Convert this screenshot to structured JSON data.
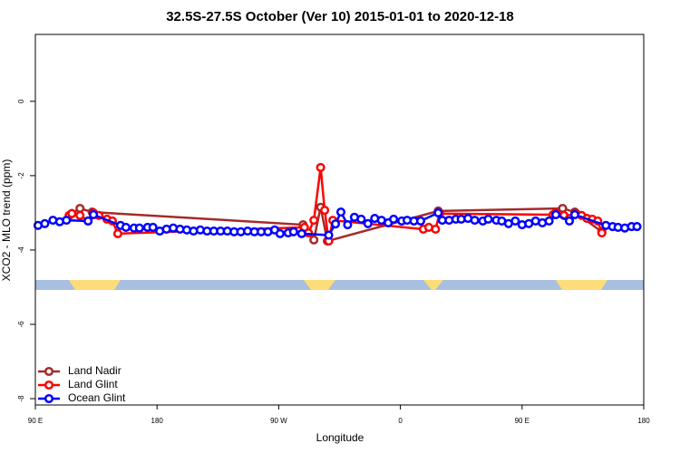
{
  "chart_data": {
    "type": "line",
    "title": "32.5S-27.5S October (Ver 10)   2015-01-01 to 2020-12-18",
    "x_label": "Longitude",
    "y_label": "XCO2 - MLO trend (ppm)",
    "xlim": [
      90,
      540
    ],
    "ylim": [
      -8.17,
      1.8
    ],
    "xticks": [
      {
        "value": 90,
        "label": "90 E"
      },
      180,
      {
        "value": 270,
        "label": "90 W"
      },
      {
        "value": 360,
        "label": "0"
      },
      {
        "value": 450,
        "label": "90 E"
      },
      {
        "value": 540,
        "label": "180"
      }
    ],
    "yticks": [
      0,
      -2,
      -4,
      -6,
      -8
    ],
    "legend": "bottom-left",
    "series": [
      {
        "name": "Land Nadir",
        "color": "#a52a2a",
        "x": [
          117,
          123,
          132,
          288,
          296,
          301,
          306,
          388,
          480,
          489,
          509
        ],
        "values": [
          -3.02,
          -2.88,
          -2.98,
          -3.32,
          -3.73,
          -2.85,
          -3.76,
          -2.95,
          -2.88,
          -2.98,
          -3.51
        ]
      },
      {
        "name": "Land Glint",
        "color": "#ff0000",
        "x": [
          115,
          117,
          123,
          129,
          133,
          137,
          143,
          147,
          151,
          289,
          292,
          296,
          301,
          304,
          307,
          310,
          377,
          381,
          386,
          389,
          473,
          475,
          481,
          485,
          490,
          494,
          498,
          502,
          506,
          509
        ],
        "values": [
          -3.07,
          -3.02,
          -3.07,
          -3.22,
          -3.0,
          -3.07,
          -3.17,
          -3.22,
          -3.56,
          -3.39,
          -3.54,
          -3.2,
          -1.78,
          -2.93,
          -3.76,
          -3.2,
          -3.44,
          -3.39,
          -3.44,
          -3.02,
          -3.05,
          -3.0,
          -3.07,
          -3.15,
          -3.02,
          -3.07,
          -3.15,
          -3.17,
          -3.22,
          -3.54
        ]
      },
      {
        "name": "Ocean Glint",
        "color": "#0000ff",
        "x": [
          92,
          97,
          103,
          108,
          113,
          129,
          133,
          153,
          157,
          163,
          167,
          173,
          177,
          182,
          187,
          192,
          197,
          202,
          207,
          212,
          217,
          222,
          227,
          232,
          237,
          242,
          247,
          252,
          257,
          262,
          267,
          271,
          277,
          281,
          287,
          307,
          312,
          316,
          321,
          326,
          331,
          336,
          341,
          346,
          351,
          355,
          361,
          365,
          370,
          375,
          388,
          391,
          396,
          401,
          405,
          410,
          415,
          421,
          425,
          431,
          435,
          440,
          445,
          450,
          455,
          460,
          465,
          470,
          475,
          485,
          489,
          512,
          517,
          521,
          526,
          531,
          535
        ],
        "values": [
          -3.34,
          -3.29,
          -3.2,
          -3.24,
          -3.2,
          -3.22,
          -3.05,
          -3.34,
          -3.39,
          -3.41,
          -3.41,
          -3.39,
          -3.39,
          -3.49,
          -3.44,
          -3.41,
          -3.44,
          -3.46,
          -3.49,
          -3.46,
          -3.49,
          -3.49,
          -3.49,
          -3.49,
          -3.51,
          -3.51,
          -3.49,
          -3.51,
          -3.51,
          -3.51,
          -3.46,
          -3.56,
          -3.54,
          -3.51,
          -3.56,
          -3.6,
          -3.3,
          -2.98,
          -3.32,
          -3.12,
          -3.17,
          -3.29,
          -3.15,
          -3.2,
          -3.27,
          -3.17,
          -3.22,
          -3.2,
          -3.22,
          -3.22,
          -3.0,
          -3.2,
          -3.2,
          -3.17,
          -3.17,
          -3.15,
          -3.2,
          -3.22,
          -3.17,
          -3.2,
          -3.22,
          -3.29,
          -3.22,
          -3.32,
          -3.29,
          -3.22,
          -3.27,
          -3.22,
          -3.05,
          -3.22,
          -3.05,
          -3.34,
          -3.37,
          -3.39,
          -3.41,
          -3.37,
          -3.37
        ]
      }
    ]
  }
}
